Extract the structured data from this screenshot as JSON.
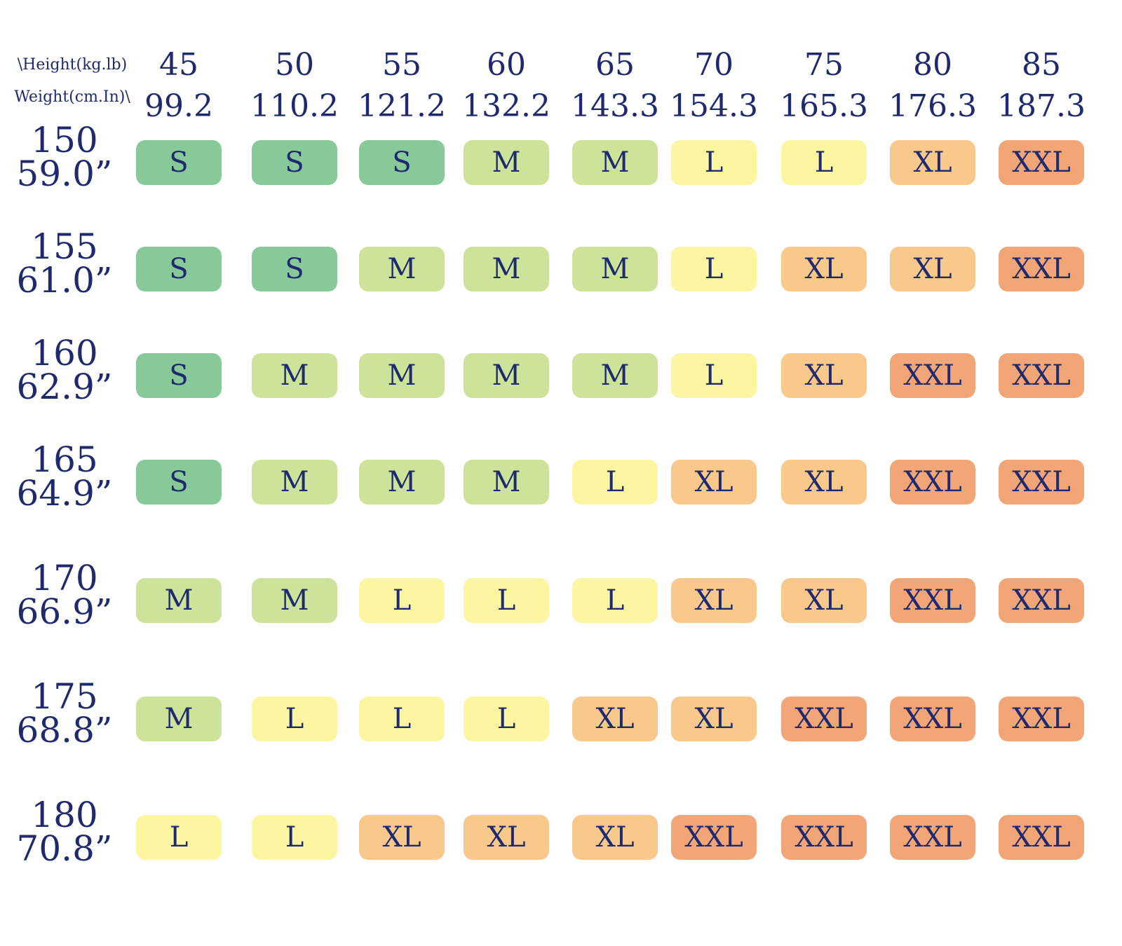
{
  "header": {
    "corner_top": "\\Height(kg.lb)",
    "corner_bottom": "Weight(cm.In)\\"
  },
  "columns": [
    {
      "kg": "45",
      "lb": "99.2"
    },
    {
      "kg": "50",
      "lb": "110.2"
    },
    {
      "kg": "55",
      "lb": "121.2"
    },
    {
      "kg": "60",
      "lb": "132.2"
    },
    {
      "kg": "65",
      "lb": "143.3"
    },
    {
      "kg": "70",
      "lb": "154.3"
    },
    {
      "kg": "75",
      "lb": "165.3"
    },
    {
      "kg": "80",
      "lb": "176.3"
    },
    {
      "kg": "85",
      "lb": "187.3"
    }
  ],
  "rows": [
    {
      "cm": "150",
      "in": "59.0”",
      "sizes": [
        "S",
        "S",
        "S",
        "M",
        "M",
        "L",
        "L",
        "XL",
        "XXL"
      ]
    },
    {
      "cm": "155",
      "in": "61.0”",
      "sizes": [
        "S",
        "S",
        "M",
        "M",
        "M",
        "L",
        "XL",
        "XL",
        "XXL"
      ]
    },
    {
      "cm": "160",
      "in": "62.9”",
      "sizes": [
        "S",
        "M",
        "M",
        "M",
        "M",
        "L",
        "XL",
        "XXL",
        "XXL"
      ]
    },
    {
      "cm": "165",
      "in": "64.9”",
      "sizes": [
        "S",
        "M",
        "M",
        "M",
        "L",
        "XL",
        "XL",
        "XXL",
        "XXL"
      ]
    },
    {
      "cm": "170",
      "in": "66.9”",
      "sizes": [
        "M",
        "M",
        "L",
        "L",
        "L",
        "XL",
        "XL",
        "XXL",
        "XXL"
      ]
    },
    {
      "cm": "175",
      "in": "68.8”",
      "sizes": [
        "M",
        "L",
        "L",
        "L",
        "XL",
        "XL",
        "XXL",
        "XXL",
        "XXL"
      ]
    },
    {
      "cm": "180",
      "in": "70.8”",
      "sizes": [
        "L",
        "L",
        "XL",
        "XL",
        "XL",
        "XXL",
        "XXL",
        "XXL",
        "XXL"
      ]
    }
  ],
  "colors": {
    "S": "#88c999",
    "M": "#cde39a",
    "L": "#fdf6a0",
    "XL": "#f8c98a",
    "XXL": "#f2a678"
  }
}
